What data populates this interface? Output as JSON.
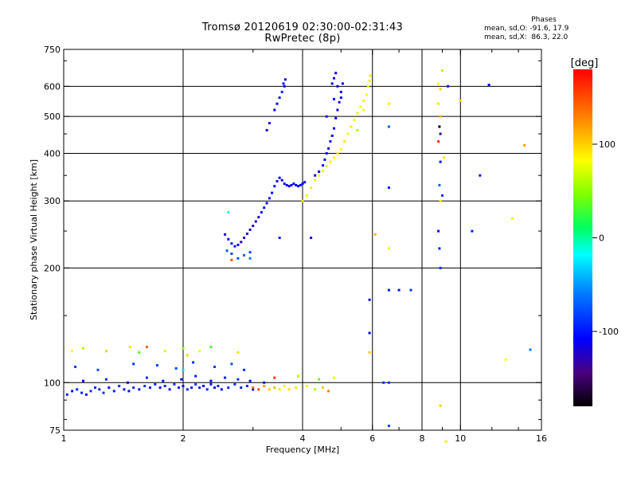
{
  "header": {
    "title": "Tromsø 20120619 02:30:00-02:31:43",
    "subtitle": "RwPretec (8p)"
  },
  "stats": {
    "title": "Phases",
    "line_o": "mean, sd,O: -91.6, 17.9",
    "line_x": "mean, sd,X:  86.3, 22.0"
  },
  "chart_data": {
    "type": "scatter",
    "title": "Tromsø 20120619 02:30:00-02:31:43",
    "subtitle": "RwPretec (8p)",
    "xlabel": "Frequency [MHz]",
    "ylabel": "Stationary phase Virtual Height [km]",
    "x_scale": "log",
    "y_scale": "log",
    "xlim": [
      1,
      16
    ],
    "ylim": [
      75,
      750
    ],
    "x_ticks": [
      1,
      2,
      4,
      6,
      8,
      10,
      16
    ],
    "y_ticks": [
      75,
      100,
      200,
      300,
      400,
      500,
      600,
      750
    ],
    "grid_x": [
      2,
      4,
      6,
      8,
      10
    ],
    "grid_y": [
      100,
      200,
      300,
      400,
      500,
      600
    ],
    "grid": true,
    "colorbar": {
      "label": "[deg]",
      "range": [
        -180,
        180
      ],
      "ticks": [
        100,
        0,
        -100
      ]
    },
    "points": [
      [
        1.02,
        93,
        -95
      ],
      [
        1.05,
        95,
        -100
      ],
      [
        1.08,
        96,
        -92
      ],
      [
        1.11,
        94,
        -98
      ],
      [
        1.14,
        93,
        -105
      ],
      [
        1.17,
        95,
        -90
      ],
      [
        1.2,
        97,
        -100
      ],
      [
        1.23,
        96,
        -95
      ],
      [
        1.26,
        94,
        -88
      ],
      [
        1.3,
        97,
        -102
      ],
      [
        1.34,
        95,
        -96
      ],
      [
        1.38,
        98,
        -92
      ],
      [
        1.42,
        96,
        -100
      ],
      [
        1.46,
        95,
        -104
      ],
      [
        1.5,
        97,
        -94
      ],
      [
        1.55,
        96,
        -98
      ],
      [
        1.6,
        98,
        -90
      ],
      [
        1.65,
        97,
        -100
      ],
      [
        1.7,
        99,
        -95
      ],
      [
        1.75,
        97,
        -106
      ],
      [
        1.8,
        98,
        -92
      ],
      [
        1.85,
        96,
        -100
      ],
      [
        1.9,
        99,
        -88
      ],
      [
        1.95,
        97,
        -98
      ],
      [
        2.0,
        98,
        -102
      ],
      [
        2.05,
        96,
        -94
      ],
      [
        2.1,
        97,
        -100
      ],
      [
        2.15,
        99,
        -90
      ],
      [
        2.2,
        97,
        -96
      ],
      [
        2.25,
        98,
        -104
      ],
      [
        2.3,
        96,
        -92
      ],
      [
        2.35,
        99,
        -98
      ],
      [
        2.4,
        97,
        -100
      ],
      [
        2.45,
        98,
        -94
      ],
      [
        2.5,
        96,
        -102
      ],
      [
        2.6,
        97,
        -96
      ],
      [
        2.7,
        99,
        -90
      ],
      [
        2.8,
        97,
        -100
      ],
      [
        2.9,
        98,
        -94
      ],
      [
        3.0,
        96,
        -104
      ],
      [
        1.12,
        101,
        -108
      ],
      [
        1.28,
        102,
        -95
      ],
      [
        1.45,
        100,
        -110
      ],
      [
        1.62,
        103,
        -92
      ],
      [
        1.78,
        101,
        -100
      ],
      [
        1.98,
        102,
        -112
      ],
      [
        2.15,
        104,
        -94
      ],
      [
        2.35,
        101,
        -104
      ],
      [
        2.55,
        103,
        -96
      ],
      [
        2.75,
        102,
        -88
      ],
      [
        2.95,
        101,
        -106
      ],
      [
        3.2,
        100,
        -100
      ],
      [
        1.07,
        110,
        -85
      ],
      [
        1.22,
        108,
        -80
      ],
      [
        1.5,
        112,
        -90
      ],
      [
        1.72,
        111,
        -86
      ],
      [
        1.92,
        109,
        -78
      ],
      [
        2.12,
        113,
        -92
      ],
      [
        2.4,
        110,
        -84
      ],
      [
        2.65,
        112,
        -74
      ],
      [
        2.85,
        108,
        -90
      ],
      [
        1.05,
        121,
        80
      ],
      [
        1.12,
        123,
        60
      ],
      [
        1.28,
        121,
        100
      ],
      [
        1.47,
        124,
        90
      ],
      [
        1.55,
        120,
        30
      ],
      [
        1.62,
        124,
        140
      ],
      [
        1.8,
        121,
        70
      ],
      [
        2.0,
        123,
        50
      ],
      [
        2.05,
        118,
        100
      ],
      [
        2.2,
        121,
        80
      ],
      [
        2.35,
        124,
        30
      ],
      [
        2.75,
        120,
        95
      ],
      [
        3.0,
        97,
        140
      ],
      [
        3.1,
        96,
        150
      ],
      [
        3.2,
        98,
        120
      ],
      [
        3.3,
        96,
        100
      ],
      [
        3.4,
        97,
        110
      ],
      [
        3.5,
        96,
        90
      ],
      [
        3.6,
        98,
        85
      ],
      [
        3.7,
        96,
        95
      ],
      [
        3.85,
        97,
        70
      ],
      [
        4.1,
        98,
        80
      ],
      [
        4.3,
        96,
        60
      ],
      [
        4.5,
        97,
        100
      ],
      [
        4.65,
        95,
        130
      ],
      [
        4.8,
        103,
        80
      ],
      [
        3.4,
        103,
        160
      ],
      [
        3.9,
        104,
        60
      ],
      [
        4.4,
        102,
        40
      ],
      [
        2.55,
        245,
        -120
      ],
      [
        2.6,
        238,
        -110
      ],
      [
        2.65,
        232,
        -100
      ],
      [
        2.7,
        228,
        -105
      ],
      [
        2.75,
        230,
        -115
      ],
      [
        2.8,
        234,
        -125
      ],
      [
        2.85,
        240,
        -130
      ],
      [
        2.9,
        246,
        -125
      ],
      [
        2.95,
        252,
        -120
      ],
      [
        3.0,
        258,
        -130
      ],
      [
        3.05,
        265,
        -125
      ],
      [
        3.1,
        272,
        -120
      ],
      [
        3.15,
        280,
        -110
      ],
      [
        3.2,
        288,
        -100
      ],
      [
        3.25,
        296,
        -105
      ],
      [
        3.3,
        305,
        -110
      ],
      [
        3.35,
        315,
        -105
      ],
      [
        3.4,
        328,
        -110
      ],
      [
        3.45,
        338,
        -105
      ],
      [
        3.5,
        345,
        -110
      ],
      [
        3.55,
        340,
        -115
      ],
      [
        3.6,
        333,
        -110
      ],
      [
        3.65,
        330,
        -105
      ],
      [
        3.7,
        328,
        -110
      ],
      [
        3.75,
        330,
        -105
      ],
      [
        3.8,
        333,
        -110
      ],
      [
        3.85,
        330,
        -108
      ],
      [
        3.9,
        328,
        -112
      ],
      [
        3.95,
        330,
        -106
      ],
      [
        4.0,
        333,
        -110
      ],
      [
        4.05,
        336,
        -105
      ],
      [
        2.58,
        222,
        -70
      ],
      [
        2.65,
        218,
        -80
      ],
      [
        2.75,
        212,
        -75
      ],
      [
        2.85,
        216,
        -70
      ],
      [
        2.95,
        220,
        -80
      ],
      [
        2.65,
        210,
        150
      ],
      [
        2.95,
        212,
        -60
      ],
      [
        4.3,
        350,
        -110
      ],
      [
        4.4,
        358,
        -115
      ],
      [
        4.5,
        372,
        -110
      ],
      [
        4.55,
        385,
        -105
      ],
      [
        4.6,
        400,
        -110
      ],
      [
        4.65,
        412,
        -115
      ],
      [
        4.7,
        430,
        -110
      ],
      [
        4.75,
        445,
        -108
      ],
      [
        4.8,
        465,
        -112
      ],
      [
        4.85,
        495,
        -106
      ],
      [
        4.9,
        520,
        -110
      ],
      [
        4.95,
        545,
        -105
      ],
      [
        5.0,
        580,
        -110
      ],
      [
        4.75,
        610,
        -112
      ],
      [
        4.8,
        630,
        -115
      ],
      [
        4.85,
        650,
        -110
      ],
      [
        4.9,
        600,
        -110
      ],
      [
        5.0,
        560,
        -110
      ],
      [
        5.05,
        610,
        -108
      ],
      [
        4.6,
        500,
        -100
      ],
      [
        4.8,
        555,
        -110
      ],
      [
        3.25,
        460,
        -120
      ],
      [
        3.3,
        480,
        -115
      ],
      [
        3.4,
        520,
        -110
      ],
      [
        3.45,
        540,
        -105
      ],
      [
        3.5,
        560,
        -100
      ],
      [
        3.55,
        580,
        -95
      ],
      [
        3.6,
        600,
        -110
      ],
      [
        3.62,
        625,
        -120
      ],
      [
        3.58,
        610,
        -110
      ],
      [
        4.0,
        300,
        90
      ],
      [
        4.1,
        310,
        85
      ],
      [
        4.2,
        325,
        90
      ],
      [
        4.3,
        340,
        80
      ],
      [
        4.4,
        350,
        85
      ],
      [
        4.5,
        360,
        90
      ],
      [
        4.6,
        370,
        85
      ],
      [
        4.7,
        380,
        90
      ],
      [
        4.8,
        390,
        85
      ],
      [
        4.9,
        400,
        90
      ],
      [
        5.0,
        410,
        85
      ],
      [
        5.1,
        430,
        90
      ],
      [
        5.2,
        450,
        85
      ],
      [
        5.3,
        470,
        90
      ],
      [
        5.4,
        490,
        85
      ],
      [
        5.5,
        510,
        90
      ],
      [
        5.6,
        530,
        85
      ],
      [
        5.7,
        550,
        90
      ],
      [
        5.8,
        570,
        85
      ],
      [
        5.85,
        600,
        90
      ],
      [
        5.9,
        620,
        88
      ],
      [
        5.92,
        640,
        92
      ],
      [
        5.5,
        460,
        60
      ],
      [
        5.7,
        520,
        80
      ],
      [
        6.6,
        540,
        90
      ],
      [
        6.6,
        470,
        -70
      ],
      [
        6.6,
        325,
        -100
      ],
      [
        6.6,
        225,
        80
      ],
      [
        6.6,
        175,
        -100
      ],
      [
        6.6,
        100,
        -85
      ],
      [
        7.0,
        175,
        -100
      ],
      [
        7.5,
        175,
        -90
      ],
      [
        6.1,
        245,
        110
      ],
      [
        5.9,
        165,
        -120
      ],
      [
        5.9,
        135,
        -110
      ],
      [
        5.9,
        120,
        100
      ],
      [
        4.2,
        240,
        -110
      ],
      [
        3.5,
        240,
        -100
      ],
      [
        2.6,
        280,
        -20
      ],
      [
        2.0,
        108,
        -30
      ],
      [
        6.4,
        100,
        -90
      ],
      [
        6.6,
        77,
        -80
      ],
      [
        8.8,
        610,
        80
      ],
      [
        8.9,
        590,
        100
      ],
      [
        9.0,
        660,
        60
      ],
      [
        8.8,
        540,
        70
      ],
      [
        8.9,
        500,
        110
      ],
      [
        8.85,
        470,
        -180
      ],
      [
        8.9,
        450,
        -130
      ],
      [
        8.8,
        430,
        160
      ],
      [
        8.9,
        380,
        -100
      ],
      [
        8.85,
        330,
        -70
      ],
      [
        9.0,
        310,
        -90
      ],
      [
        8.9,
        300,
        90
      ],
      [
        8.8,
        250,
        -110
      ],
      [
        8.85,
        225,
        -100
      ],
      [
        8.9,
        200,
        -90
      ],
      [
        9.1,
        390,
        90
      ],
      [
        9.2,
        70,
        90
      ],
      [
        9.3,
        600,
        -100
      ],
      [
        10.0,
        550,
        100
      ],
      [
        10.7,
        250,
        -100
      ],
      [
        11.2,
        350,
        -100
      ],
      [
        11.8,
        605,
        -110
      ],
      [
        13.0,
        115,
        80
      ],
      [
        13.5,
        270,
        80
      ],
      [
        14.5,
        420,
        120
      ],
      [
        15.0,
        122,
        -60
      ],
      [
        8.9,
        87,
        100
      ]
    ]
  }
}
